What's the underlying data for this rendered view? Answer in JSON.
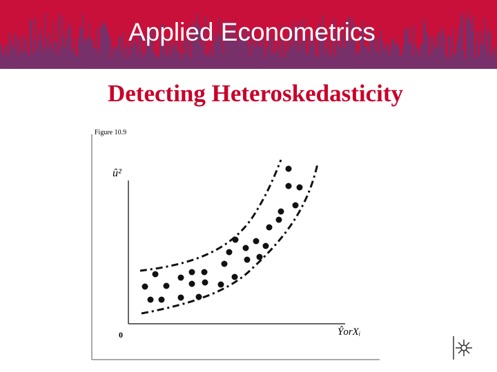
{
  "header": {
    "title": "Applied Econometrics"
  },
  "slide": {
    "title": "Detecting Heteroskedasticity"
  },
  "figure": {
    "caption": "Figure 10.9",
    "y_label": "û²",
    "x_label": "ŶorXᵢ",
    "origin": "0"
  }
}
